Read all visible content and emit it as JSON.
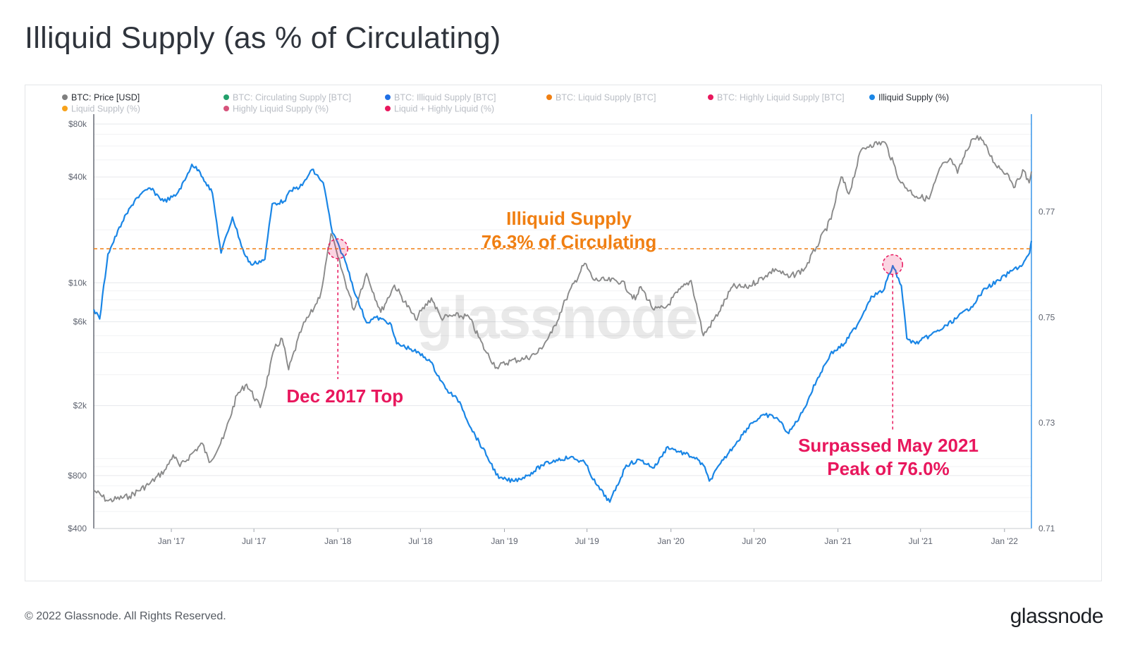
{
  "title": "Illiquid Supply (as % of Circulating)",
  "footer": {
    "copyright": "© 2022 Glassnode. All Rights Reserved.",
    "logo": "glassnode"
  },
  "watermark": "glassnode",
  "colors": {
    "price": "#8a8a8a",
    "illiquid_pct": "#1a86e6",
    "annotation_orange": "#f07f12",
    "annotation_pink": "#e8175d"
  },
  "chart_data": {
    "type": "line",
    "legend": [
      {
        "label": "BTC: Price [USD]",
        "color": "#7f7f7f",
        "active": true
      },
      {
        "label": "BTC: Circulating Supply [BTC]",
        "color": "#22a06b",
        "active": false
      },
      {
        "label": "BTC: Illiquid Supply [BTC]",
        "color": "#1f6fe5",
        "active": false
      },
      {
        "label": "BTC: Liquid Supply [BTC]",
        "color": "#f07f12",
        "active": false
      },
      {
        "label": "BTC: Highly Liquid Supply [BTC]",
        "color": "#e8175d",
        "active": false
      },
      {
        "label": "Illiquid Supply (%)",
        "color": "#1a86e6",
        "active": true
      },
      {
        "label": "Liquid Supply (%)",
        "color": "#f7a21b",
        "active": false
      },
      {
        "label": "Highly Liquid Supply (%)",
        "color": "#d6537b",
        "active": false
      },
      {
        "label": "Liquid + Highly Liquid (%)",
        "color": "#e8175d",
        "active": false
      }
    ],
    "x_ticks": [
      "Jan '17",
      "Jul '17",
      "Jan '18",
      "Jul '18",
      "Jan '19",
      "Jul '19",
      "Jan '20",
      "Jul '20",
      "Jan '21",
      "Jul '21",
      "Jan '22"
    ],
    "x_tick_values": [
      "2017-01-01",
      "2017-07-01",
      "2018-01-01",
      "2018-07-01",
      "2019-01-01",
      "2019-07-01",
      "2020-01-01",
      "2020-07-01",
      "2021-01-01",
      "2021-07-01",
      "2022-01-01"
    ],
    "x_range": [
      "2016-07-15",
      "2022-03-01"
    ],
    "y_left": {
      "scale": "log",
      "ticks": [
        "$400",
        "$800",
        "$2k",
        "$6k",
        "$10k",
        "$40k",
        "$80k"
      ],
      "tick_values": [
        400,
        800,
        2000,
        6000,
        10000,
        40000,
        80000
      ],
      "range": [
        400,
        80000
      ]
    },
    "y_right": {
      "scale": "linear",
      "ticks": [
        "0.71",
        "0.73",
        "0.75",
        "0.77"
      ],
      "tick_values": [
        0.71,
        0.73,
        0.75,
        0.77
      ],
      "range": [
        0.71,
        0.7885
      ]
    },
    "series": [
      {
        "name": "BTC: Price [USD]",
        "axis": "left",
        "color": "#8a8a8a",
        "points": [
          [
            "2016-07-15",
            660
          ],
          [
            "2016-08-15",
            575
          ],
          [
            "2016-10-01",
            610
          ],
          [
            "2016-11-15",
            720
          ],
          [
            "2016-12-20",
            870
          ],
          [
            "2017-01-05",
            1050
          ],
          [
            "2017-01-20",
            900
          ],
          [
            "2017-02-20",
            1100
          ],
          [
            "2017-03-10",
            1220
          ],
          [
            "2017-03-25",
            950
          ],
          [
            "2017-04-25",
            1300
          ],
          [
            "2017-05-25",
            2300
          ],
          [
            "2017-06-15",
            2650
          ],
          [
            "2017-07-15",
            1950
          ],
          [
            "2017-08-15",
            4200
          ],
          [
            "2017-09-01",
            4800
          ],
          [
            "2017-09-15",
            3200
          ],
          [
            "2017-10-15",
            5600
          ],
          [
            "2017-11-10",
            7200
          ],
          [
            "2017-11-25",
            8800
          ],
          [
            "2017-12-17",
            19000
          ],
          [
            "2018-01-01",
            14000
          ],
          [
            "2018-02-05",
            7000
          ],
          [
            "2018-03-05",
            11300
          ],
          [
            "2018-04-05",
            6800
          ],
          [
            "2018-05-05",
            9700
          ],
          [
            "2018-06-20",
            6200
          ],
          [
            "2018-07-25",
            8200
          ],
          [
            "2018-08-15",
            6300
          ],
          [
            "2018-09-15",
            6500
          ],
          [
            "2018-10-15",
            6400
          ],
          [
            "2018-11-20",
            4100
          ],
          [
            "2018-12-15",
            3300
          ],
          [
            "2019-01-15",
            3600
          ],
          [
            "2019-02-15",
            3700
          ],
          [
            "2019-03-15",
            4000
          ],
          [
            "2019-04-15",
            5200
          ],
          [
            "2019-05-15",
            8000
          ],
          [
            "2019-06-26",
            12900
          ],
          [
            "2019-07-15",
            10400
          ],
          [
            "2019-08-15",
            10300
          ],
          [
            "2019-09-15",
            10200
          ],
          [
            "2019-10-15",
            8000
          ],
          [
            "2019-10-27",
            9500
          ],
          [
            "2019-11-25",
            7000
          ],
          [
            "2019-12-20",
            7200
          ],
          [
            "2020-01-15",
            8800
          ],
          [
            "2020-02-14",
            10300
          ],
          [
            "2020-03-12",
            5000
          ],
          [
            "2020-04-15",
            6800
          ],
          [
            "2020-05-15",
            9500
          ],
          [
            "2020-06-15",
            9400
          ],
          [
            "2020-07-27",
            11000
          ],
          [
            "2020-08-17",
            12000
          ],
          [
            "2020-09-15",
            10700
          ],
          [
            "2020-10-20",
            12000
          ],
          [
            "2020-11-15",
            16000
          ],
          [
            "2020-12-17",
            23000
          ],
          [
            "2021-01-08",
            40000
          ],
          [
            "2021-01-25",
            32000
          ],
          [
            "2021-02-21",
            57000
          ],
          [
            "2021-03-13",
            61000
          ],
          [
            "2021-04-14",
            63000
          ],
          [
            "2021-05-19",
            37000
          ],
          [
            "2021-06-22",
            31000
          ],
          [
            "2021-07-20",
            30000
          ],
          [
            "2021-08-15",
            46000
          ],
          [
            "2021-09-07",
            50000
          ],
          [
            "2021-09-20",
            42000
          ],
          [
            "2021-10-20",
            65000
          ],
          [
            "2021-11-09",
            67500
          ],
          [
            "2021-12-10",
            48000
          ],
          [
            "2022-01-10",
            41000
          ],
          [
            "2022-01-24",
            35000
          ],
          [
            "2022-02-10",
            44000
          ],
          [
            "2022-02-24",
            37000
          ],
          [
            "2022-03-01",
            43000
          ]
        ]
      },
      {
        "name": "Illiquid Supply (%)",
        "axis": "right",
        "color": "#1a86e6",
        "points": [
          [
            "2016-07-15",
            0.7515
          ],
          [
            "2016-07-28",
            0.7497
          ],
          [
            "2016-08-15",
            0.762
          ],
          [
            "2016-09-15",
            0.768
          ],
          [
            "2016-10-15",
            0.7725
          ],
          [
            "2016-11-15",
            0.7745
          ],
          [
            "2016-12-15",
            0.772
          ],
          [
            "2017-01-10",
            0.773
          ],
          [
            "2017-01-31",
            0.776
          ],
          [
            "2017-02-15",
            0.779
          ],
          [
            "2017-03-05",
            0.7775
          ],
          [
            "2017-04-01",
            0.7735
          ],
          [
            "2017-04-20",
            0.7622
          ],
          [
            "2017-05-15",
            0.769
          ],
          [
            "2017-06-10",
            0.762
          ],
          [
            "2017-06-25",
            0.76
          ],
          [
            "2017-07-25",
            0.761
          ],
          [
            "2017-08-10",
            0.7715
          ],
          [
            "2017-09-05",
            0.772
          ],
          [
            "2017-09-20",
            0.774
          ],
          [
            "2017-10-15",
            0.775
          ],
          [
            "2017-11-05",
            0.778
          ],
          [
            "2017-11-30",
            0.7755
          ],
          [
            "2017-12-20",
            0.766
          ],
          [
            "2018-01-05",
            0.7632
          ],
          [
            "2018-01-20",
            0.76
          ],
          [
            "2018-02-10",
            0.754
          ],
          [
            "2018-03-05",
            0.749
          ],
          [
            "2018-03-25",
            0.75
          ],
          [
            "2018-04-25",
            0.749
          ],
          [
            "2018-05-10",
            0.745
          ],
          [
            "2018-06-10",
            0.744
          ],
          [
            "2018-07-20",
            0.742
          ],
          [
            "2018-08-25",
            0.7365
          ],
          [
            "2018-09-25",
            0.734
          ],
          [
            "2018-10-20",
            0.729
          ],
          [
            "2018-11-25",
            0.7235
          ],
          [
            "2018-12-20",
            0.7195
          ],
          [
            "2019-01-20",
            0.719
          ],
          [
            "2019-02-20",
            0.72
          ],
          [
            "2019-03-25",
            0.722
          ],
          [
            "2019-04-25",
            0.723
          ],
          [
            "2019-05-25",
            0.7235
          ],
          [
            "2019-06-26",
            0.7225
          ],
          [
            "2019-07-20",
            0.7185
          ],
          [
            "2019-08-20",
            0.715
          ],
          [
            "2019-09-25",
            0.722
          ],
          [
            "2019-10-25",
            0.723
          ],
          [
            "2019-11-25",
            0.7215
          ],
          [
            "2019-12-25",
            0.7255
          ],
          [
            "2020-01-20",
            0.7245
          ],
          [
            "2020-02-20",
            0.7235
          ],
          [
            "2020-03-12",
            0.722
          ],
          [
            "2020-03-25",
            0.719
          ],
          [
            "2020-04-25",
            0.723
          ],
          [
            "2020-05-25",
            0.7265
          ],
          [
            "2020-06-25",
            0.73
          ],
          [
            "2020-07-25",
            0.7315
          ],
          [
            "2020-08-20",
            0.731
          ],
          [
            "2020-09-15",
            0.728
          ],
          [
            "2020-10-15",
            0.732
          ],
          [
            "2020-11-15",
            0.738
          ],
          [
            "2020-12-15",
            0.743
          ],
          [
            "2021-01-15",
            0.745
          ],
          [
            "2021-02-15",
            0.749
          ],
          [
            "2021-03-15",
            0.754
          ],
          [
            "2021-04-10",
            0.755
          ],
          [
            "2021-05-01",
            0.7598
          ],
          [
            "2021-05-20",
            0.756
          ],
          [
            "2021-06-01",
            0.746
          ],
          [
            "2021-06-20",
            0.745
          ],
          [
            "2021-07-20",
            0.7465
          ],
          [
            "2021-08-20",
            0.748
          ],
          [
            "2021-09-20",
            0.75
          ],
          [
            "2021-10-20",
            0.752
          ],
          [
            "2021-11-20",
            0.7555
          ],
          [
            "2021-12-20",
            0.757
          ],
          [
            "2022-01-20",
            0.759
          ],
          [
            "2022-02-10",
            0.76
          ],
          [
            "2022-02-25",
            0.7622
          ],
          [
            "2022-03-01",
            0.7645
          ]
        ]
      }
    ],
    "annotations": [
      {
        "text_lines": [
          "Illiquid Supply",
          "76.3% of Circulating"
        ],
        "color": "#f07f12",
        "y_value": 0.763
      },
      {
        "text_lines": [
          "Dec 2017 Top"
        ],
        "color": "#e8175d",
        "date": "2018-01-01",
        "value": 0.763
      },
      {
        "text_lines": [
          "Surpassed May 2021",
          "Peak of 76.0%"
        ],
        "color": "#e8175d",
        "date": "2021-05-01",
        "value": 0.76
      }
    ]
  }
}
